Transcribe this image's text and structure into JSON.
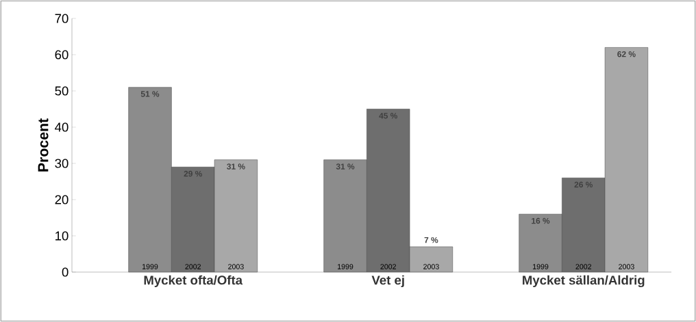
{
  "chart_data": {
    "type": "bar",
    "ylabel": "Procent",
    "categories": [
      "Mycket ofta/Ofta",
      "Vet ej",
      "Mycket sällan/Aldrig"
    ],
    "series": [
      {
        "name": "1999",
        "color": "#8c8c8c",
        "values": [
          51,
          31,
          16
        ],
        "value_labels": [
          "51 %",
          "31 %",
          "16 %"
        ]
      },
      {
        "name": "2002",
        "color": "#6e6e6e",
        "values": [
          29,
          45,
          26
        ],
        "value_labels": [
          "29 %",
          "45 %",
          "26 %"
        ]
      },
      {
        "name": "2003",
        "color": "#a8a8a8",
        "values": [
          31,
          7,
          62
        ],
        "value_labels": [
          "31 %",
          "7 %",
          "62 %"
        ]
      }
    ],
    "ylim": [
      0,
      70
    ],
    "yticks": [
      0,
      10,
      20,
      30,
      40,
      50,
      60,
      70
    ],
    "grid": false
  }
}
